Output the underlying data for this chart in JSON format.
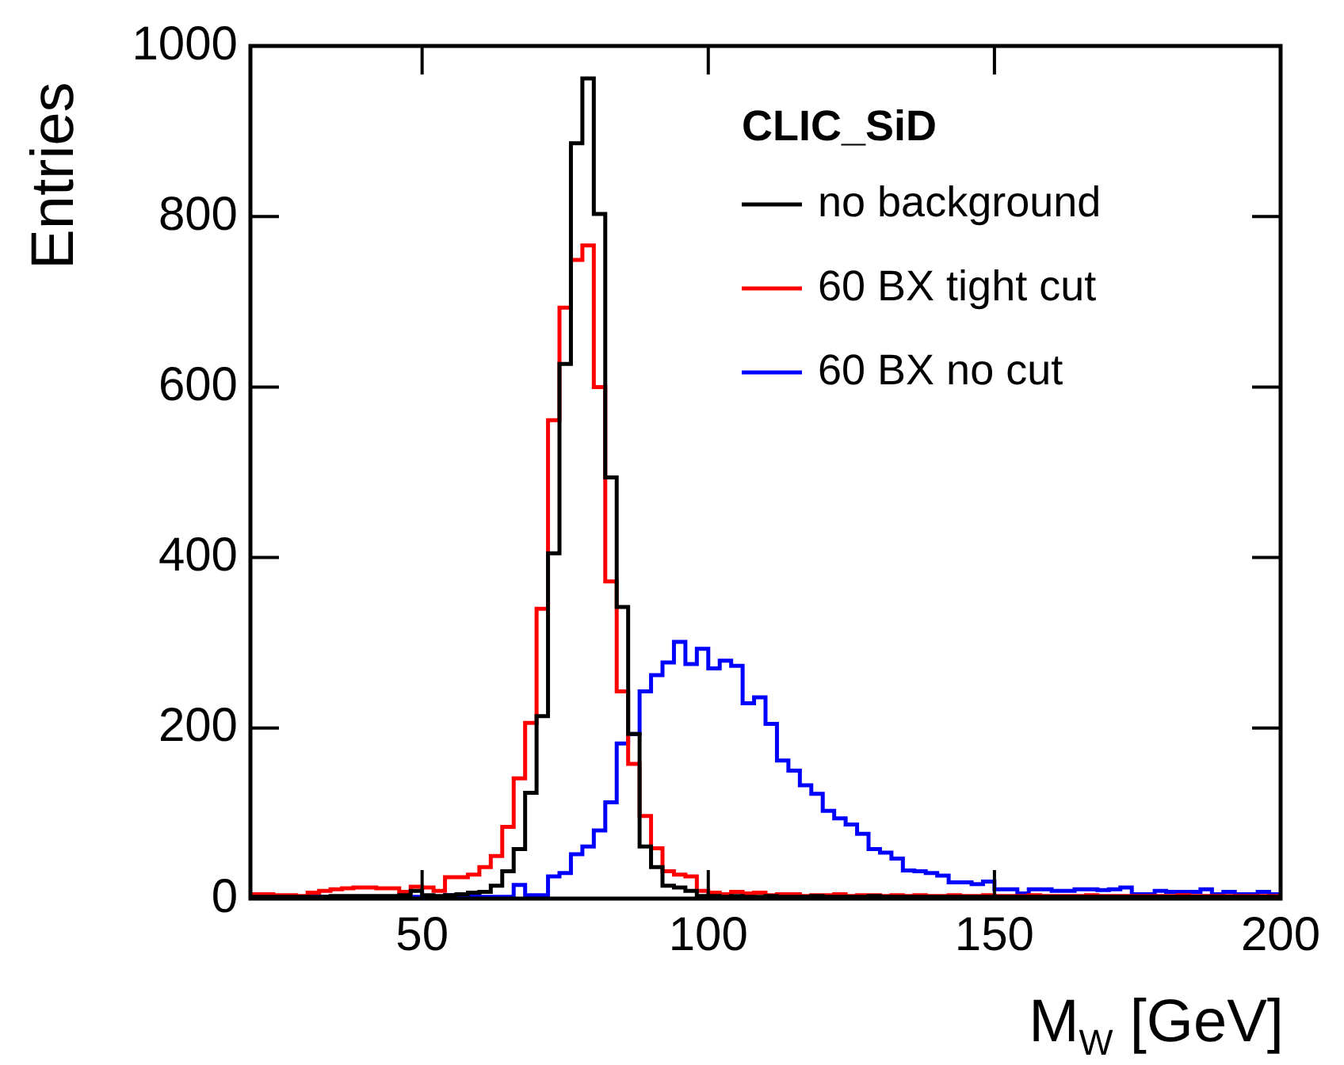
{
  "chart_data": {
    "type": "histogram",
    "xlabel": "M$_{W}$ [GeV]",
    "ylabel": "Entries",
    "legend_title": "CLIC_SiD",
    "legend": "top right",
    "grid": false,
    "bins": [
      20,
      22,
      24,
      26,
      28,
      30,
      32,
      34,
      36,
      38,
      40,
      42,
      44,
      46,
      48,
      50,
      52,
      54,
      56,
      58,
      60,
      62,
      64,
      66,
      68,
      70,
      72,
      74,
      76,
      78,
      80,
      82,
      84,
      86,
      88,
      90,
      92,
      94,
      96,
      98,
      100,
      102,
      104,
      106,
      108,
      110,
      112,
      114,
      116,
      118,
      120,
      122,
      124,
      126,
      128,
      130,
      132,
      134,
      136,
      138,
      140,
      142,
      144,
      146,
      148,
      150,
      152,
      154,
      156,
      158,
      160,
      162,
      164,
      166,
      168,
      170,
      172,
      174,
      176,
      178,
      180,
      182,
      184,
      186,
      188,
      190,
      192,
      194,
      196,
      198,
      200
    ],
    "xlim": [
      20,
      200
    ],
    "xticks": [
      50,
      100,
      150,
      200
    ],
    "ylim": [
      0,
      1000
    ],
    "yticks": [
      0,
      200,
      400,
      600,
      800,
      1000
    ],
    "series": [
      {
        "name": "no background",
        "color": "#000000",
        "values": [
          2,
          2,
          2,
          2,
          2,
          2,
          2,
          3,
          3,
          3,
          3,
          3,
          3,
          4,
          9,
          4,
          3,
          4,
          5,
          7,
          8,
          15,
          32,
          58,
          124,
          214,
          405,
          627,
          886,
          962,
          803,
          494,
          342,
          193,
          61,
          37,
          15,
          13,
          9,
          3,
          3,
          2,
          3,
          2,
          2,
          3,
          2,
          2,
          2,
          3,
          2,
          2,
          2,
          2,
          3,
          2,
          2,
          2,
          2,
          2,
          2,
          2,
          2,
          2,
          2,
          2,
          2,
          2,
          2,
          2,
          2,
          2,
          2,
          2,
          2,
          2,
          2,
          2,
          2,
          2,
          2,
          2,
          2,
          2,
          2,
          2,
          2,
          2,
          2,
          2
        ]
      },
      {
        "name": "60 BX tight cut",
        "color": "#ff0000",
        "values": [
          5,
          5,
          4,
          4,
          3,
          7,
          9,
          11,
          12,
          13,
          13,
          12,
          12,
          8,
          14,
          13,
          9,
          25,
          25,
          28,
          37,
          50,
          84,
          141,
          206,
          340,
          561,
          693,
          749,
          766,
          600,
          372,
          243,
          158,
          97,
          59,
          32,
          28,
          26,
          9,
          7,
          5,
          8,
          6,
          7,
          4,
          5,
          5,
          3,
          4,
          4,
          5,
          3,
          4,
          4,
          3,
          4,
          3,
          4,
          3,
          3,
          4,
          3,
          3,
          4,
          3,
          3,
          3,
          4,
          3,
          3,
          3,
          3,
          4,
          3,
          3,
          3,
          3,
          3,
          3,
          3,
          4,
          3,
          3,
          3,
          3,
          3,
          3,
          3,
          3
        ]
      },
      {
        "name": "60 BX no cut",
        "color": "#0000ff",
        "values": [
          2,
          2,
          2,
          2,
          2,
          2,
          2,
          2,
          2,
          2,
          2,
          2,
          2,
          2,
          2,
          2,
          2,
          4,
          4,
          4,
          2,
          2,
          2,
          16,
          4,
          4,
          26,
          30,
          52,
          61,
          80,
          113,
          182,
          193,
          243,
          262,
          277,
          301,
          275,
          293,
          270,
          279,
          273,
          229,
          236,
          205,
          162,
          150,
          133,
          123,
          103,
          94,
          87,
          76,
          58,
          54,
          47,
          33,
          32,
          30,
          27,
          19,
          19,
          17,
          20,
          11,
          11,
          6,
          11,
          11,
          9,
          9,
          11,
          11,
          10,
          11,
          13,
          5,
          5,
          9,
          8,
          8,
          8,
          11,
          5,
          8,
          5,
          5,
          8,
          5
        ]
      }
    ]
  }
}
